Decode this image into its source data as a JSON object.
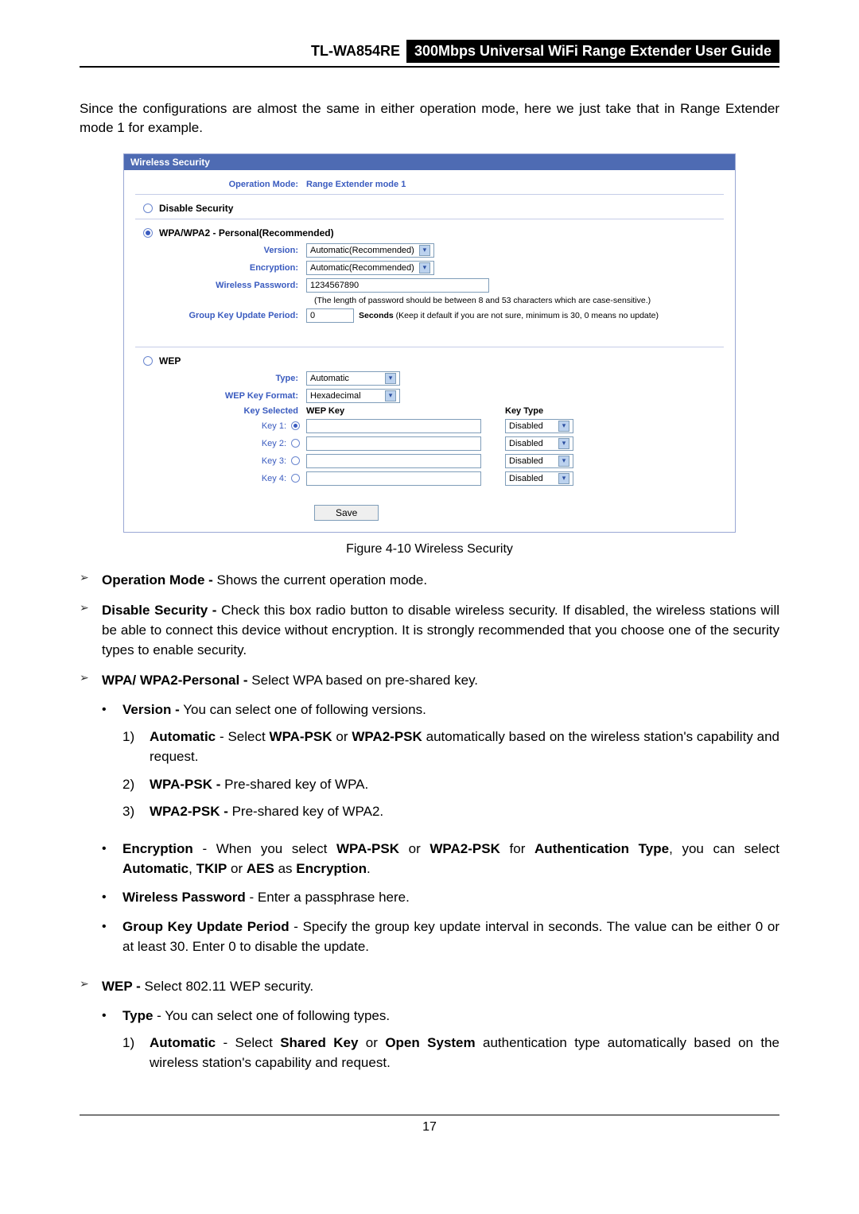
{
  "header": {
    "model": "TL-WA854RE",
    "title": "300Mbps Universal WiFi Range Extender User Guide"
  },
  "intro": "Since the configurations are almost the same in either operation mode, here we just take that in Range Extender mode 1 for example.",
  "panel": {
    "title": "Wireless Security",
    "opmode_label": "Operation Mode:",
    "opmode_value": "Range Extender mode 1",
    "disable_label": "Disable Security",
    "wpa_label": "WPA/WPA2 - Personal(Recommended)",
    "version_label": "Version:",
    "version_value": "Automatic(Recommended)",
    "encryption_label": "Encryption:",
    "encryption_value": "Automatic(Recommended)",
    "wpass_label": "Wireless Password:",
    "wpass_value": "1234567890",
    "wpass_hint": "(The length of password should be between 8 and 53 characters which are case-sensitive.)",
    "gkup_label": "Group Key Update Period:",
    "gkup_value": "0",
    "gkup_hint_strong": "Seconds",
    "gkup_hint_rest": " (Keep it default if you are not sure, minimum is 30, 0 means no update)",
    "wep_label": "WEP",
    "type_label": "Type:",
    "type_value": "Automatic",
    "wkf_label": "WEP Key Format:",
    "wkf_value": "Hexadecimal",
    "keysel_head": "Key Selected",
    "wepkey_head": "WEP Key",
    "keytype_head": "Key Type",
    "keys": [
      {
        "label": "Key 1:",
        "sel": true,
        "type": "Disabled"
      },
      {
        "label": "Key 2:",
        "sel": false,
        "type": "Disabled"
      },
      {
        "label": "Key 3:",
        "sel": false,
        "type": "Disabled"
      },
      {
        "label": "Key 4:",
        "sel": false,
        "type": "Disabled"
      }
    ],
    "save": "Save"
  },
  "figcap": "Figure 4-10 Wireless Security",
  "bul": {
    "opmode_b": "Operation Mode -",
    "opmode_t": " Shows the current operation mode.",
    "disable_b": "Disable Security -",
    "disable_t": " Check this box radio button to disable wireless security. If disabled, the wireless stations will be able to connect this device without encryption. It is strongly recommended that you choose one of the security types to enable security.",
    "wpa_b": "WPA/ WPA2-Personal -",
    "wpa_t": " Select WPA based on pre-shared key.",
    "ver_b": "Version -",
    "ver_t": " You can select one of following versions.",
    "ver1_b": "Automatic",
    "ver1_m": " - Select ",
    "ver1_b2": "WPA-PSK",
    "ver1_m2": " or ",
    "ver1_b3": "WPA2-PSK",
    "ver1_t": " automatically based on the wireless station's capability and request.",
    "ver2_b": "WPA-PSK -",
    "ver2_t": " Pre-shared key of WPA.",
    "ver3_b": "WPA2-PSK -",
    "ver3_t": " Pre-shared key of WPA2.",
    "enc_b": "Encryption",
    "enc_m1": " - When you select ",
    "enc_b2": "WPA-PSK",
    "enc_m2": " or ",
    "enc_b3": "WPA2-PSK",
    "enc_m3": " for ",
    "enc_b4": "Authentication Type",
    "enc_m4": ", you can select ",
    "enc_b5": "Automatic",
    "enc_m5": ", ",
    "enc_b6": "TKIP",
    "enc_m6": " or ",
    "enc_b7": "AES",
    "enc_m7": " as ",
    "enc_b8": "Encryption",
    "enc_end": ".",
    "wp_b": "Wireless Password",
    "wp_t": " - Enter a passphrase here.",
    "gk_b": "Group Key Update Period",
    "gk_t": " - Specify the group key update interval in seconds. The value can be either 0 or at least 30. Enter 0 to disable the update.",
    "wep_b": "WEP -",
    "wep_t": " Select 802.11 WEP security.",
    "type_b": "Type",
    "type_t": " - You can select one of following types.",
    "type1_b": "Automatic",
    "type1_m1": " - Select ",
    "type1_b2": "Shared Key",
    "type1_m2": " or ",
    "type1_b3": "Open System",
    "type1_t": " authentication type automatically based on the wireless station's capability and request."
  },
  "page_number": "17",
  "colors": {
    "panel_header_bg": "#4e6bb3",
    "blue_text": "#3a5bbf",
    "border": "#9aa7d4"
  }
}
